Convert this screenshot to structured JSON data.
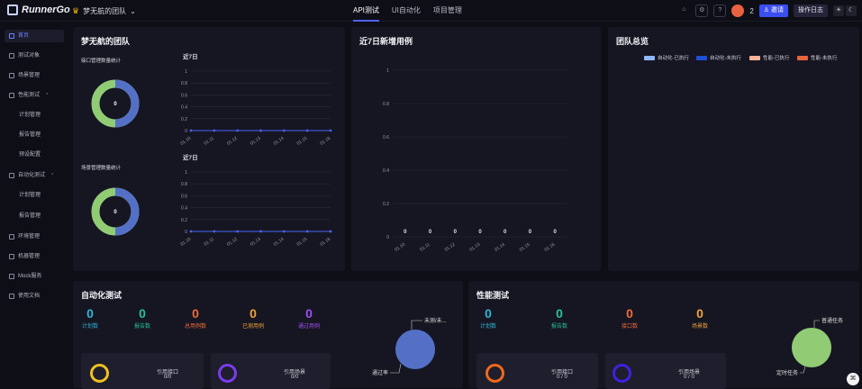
{
  "app": {
    "name": "RunnerGo",
    "team": "梦无航的团队"
  },
  "top_tabs": [
    {
      "label": "API测试",
      "active": true
    },
    {
      "label": "UI自动化",
      "active": false
    },
    {
      "label": "项目管理",
      "active": false
    }
  ],
  "top_right": {
    "count": "2",
    "invite_label": "邀请",
    "oplog_label": "操作日志"
  },
  "sidebar": [
    {
      "label": "首页",
      "active": true
    },
    {
      "label": "测试对象"
    },
    {
      "label": "场景管理"
    },
    {
      "label": "性能测试"
    },
    {
      "label": "计划管理"
    },
    {
      "label": "报告管理"
    },
    {
      "label": "预设配置"
    },
    {
      "label": "自动化测试"
    },
    {
      "label": "计划管理"
    },
    {
      "label": "报告管理"
    },
    {
      "label": "环境管理"
    },
    {
      "label": "机器管理"
    },
    {
      "label": "Mock服务"
    },
    {
      "label": "使用文档"
    }
  ],
  "team_card": {
    "title": "梦无航的团队",
    "api_label": "接口管理数量统计",
    "api_total": "0",
    "scene_label": "场景管理数量统计",
    "scene_total": "0",
    "recent_label": "近7日",
    "recent_label_2": "近7日",
    "colors": {
      "donut_a": "#5470c6",
      "donut_b": "#91cc75",
      "line": "#4c63f5"
    }
  },
  "chart_data": [
    {
      "type": "line",
      "title": "近7日",
      "x": [
        "01.10",
        "01.11",
        "01.12",
        "01.13",
        "01.14",
        "01.15",
        "01.16"
      ],
      "values": [
        0,
        0,
        0,
        0,
        0,
        0,
        0
      ],
      "yticks": [
        "0",
        "0.2",
        "0.4",
        "0.6",
        "0.8",
        "1"
      ],
      "ylim": [
        0,
        1
      ]
    },
    {
      "type": "line",
      "title": "近7日",
      "x": [
        "01.10",
        "01.11",
        "01.12",
        "01.13",
        "01.14",
        "01.15",
        "01.16"
      ],
      "values": [
        0,
        0,
        0,
        0,
        0,
        0,
        0
      ],
      "yticks": [
        "0",
        "0.2",
        "0.4",
        "0.6",
        "0.8",
        "1"
      ],
      "ylim": [
        0,
        1
      ]
    },
    {
      "type": "bar",
      "title": "近7日新增用例",
      "categories": [
        "01.10",
        "01.11",
        "01.12",
        "01.13",
        "01.14",
        "01.15",
        "01.16"
      ],
      "values": [
        0,
        0,
        0,
        0,
        0,
        0,
        0
      ],
      "yticks": [
        "0",
        "0.2",
        "0.4",
        "0.6",
        "0.8",
        "1"
      ],
      "ylim": [
        0,
        1
      ]
    }
  ],
  "team_overview": {
    "title": "团队总览",
    "legend": [
      {
        "label": "自动化-已执行",
        "color": "#8fb7ff"
      },
      {
        "label": "自动化-未执行",
        "color": "#1e4fd6"
      },
      {
        "label": "性能-已执行",
        "color": "#f7b49a"
      },
      {
        "label": "性能-未执行",
        "color": "#e5653f"
      }
    ]
  },
  "new_cases": {
    "title": "近7日新增用例"
  },
  "auto_test": {
    "title": "自动化测试",
    "stats": [
      {
        "value": "0",
        "label": "计划数",
        "color": "#2fb5d6"
      },
      {
        "value": "0",
        "label": "报告数",
        "color": "#26c0a0"
      },
      {
        "value": "0",
        "label": "总用例数",
        "color": "#ef6a3a"
      },
      {
        "value": "0",
        "label": "已测用例",
        "color": "#f0a23a"
      },
      {
        "value": "0",
        "label": "通过用例",
        "color": "#a050f0"
      }
    ],
    "pie_labels": {
      "a": "未测/未...",
      "b": "通过率"
    },
    "sub": [
      {
        "label": "引用接口",
        "value": "0/0",
        "ring": "#f0c020"
      },
      {
        "label": "引用场景",
        "value": "0/0",
        "ring": "#7a3cf0"
      }
    ],
    "pie_color": "#5470c6"
  },
  "perf_test": {
    "title": "性能测试",
    "stats": [
      {
        "value": "0",
        "label": "计划数",
        "color": "#2fb5d6"
      },
      {
        "value": "0",
        "label": "报告数",
        "color": "#26c0a0"
      },
      {
        "value": "0",
        "label": "接口数",
        "color": "#ef6a3a"
      },
      {
        "value": "0",
        "label": "场景数",
        "color": "#f0a23a"
      }
    ],
    "pie_labels": {
      "a": "普通任务",
      "b": "定时任务"
    },
    "sub": [
      {
        "label": "引用接口",
        "value": "0 / 0",
        "ring": "#ef6a1a"
      },
      {
        "label": "引用场景",
        "value": "0 / 0",
        "ring": "#4020e0"
      }
    ],
    "pie_color": "#91cc75"
  }
}
